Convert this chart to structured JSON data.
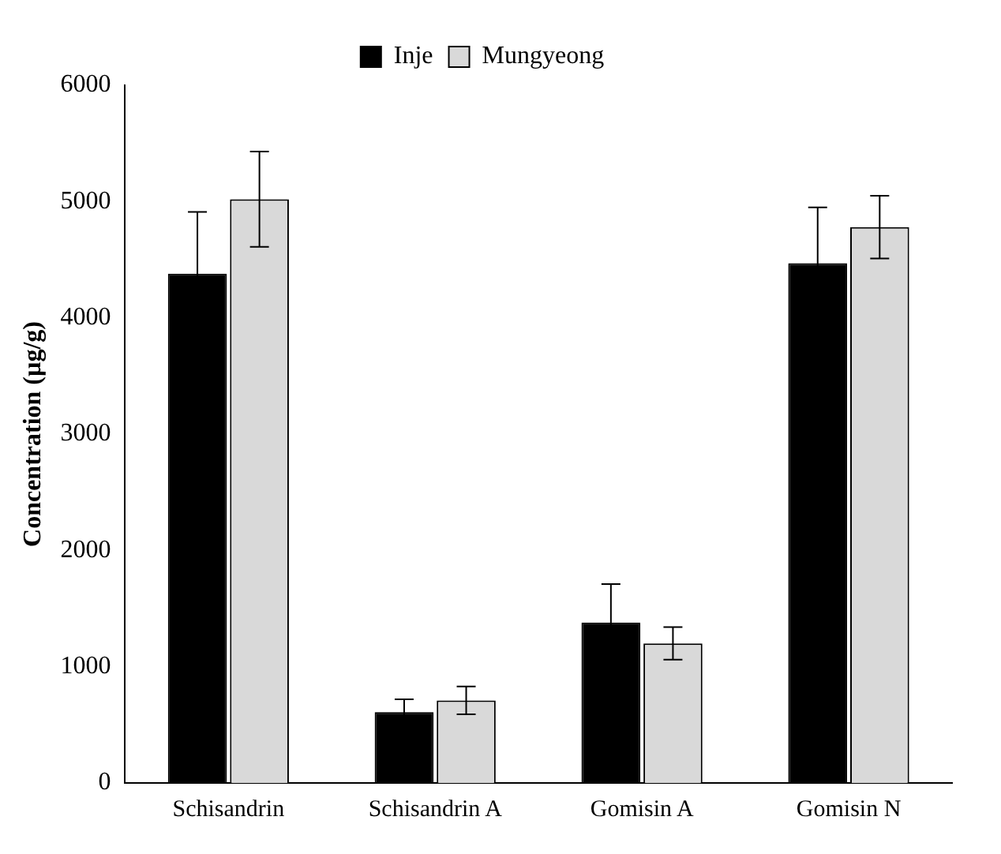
{
  "chart_data": {
    "type": "bar",
    "ylabel": "Concentration (µg/g)",
    "categories": [
      "Schisandrin",
      "Schisandrin A",
      "Gomisin A",
      "Gomisin N"
    ],
    "series": [
      {
        "name": "Inje",
        "color": "#000000",
        "values": [
          4380,
          610,
          1380,
          4470
        ],
        "errors": [
          530,
          110,
          330,
          480
        ]
      },
      {
        "name": "Mungyeong",
        "color": "#d9d9d9",
        "values": [
          5020,
          710,
          1200,
          4780
        ],
        "errors": [
          410,
          120,
          140,
          270
        ]
      }
    ],
    "ylim": [
      0,
      6000
    ],
    "yticks": [
      0,
      1000,
      2000,
      3000,
      4000,
      5000,
      6000
    ],
    "grid": false,
    "legend": "top"
  }
}
